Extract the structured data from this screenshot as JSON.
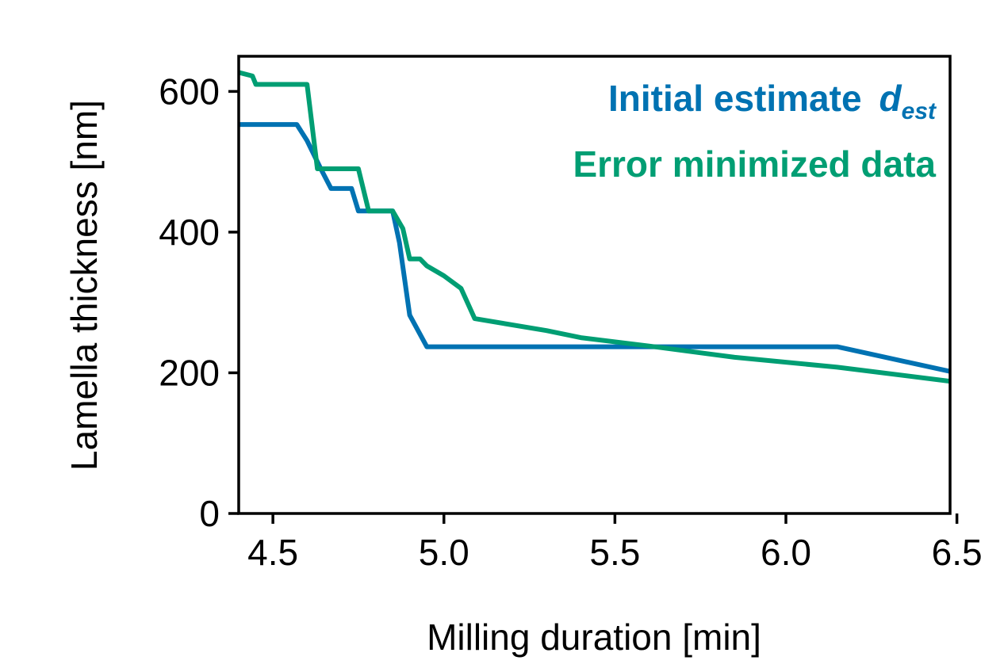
{
  "chart_data": {
    "type": "line",
    "xlabel": "Milling duration [min]",
    "ylabel": "Lamella thickness [nm]",
    "xlim": [
      4.4,
      6.48
    ],
    "ylim": [
      0,
      650
    ],
    "xticks": [
      {
        "value": 4.5,
        "label": "4.5"
      },
      {
        "value": 5.0,
        "label": "5.0"
      },
      {
        "value": 5.5,
        "label": "5.5"
      },
      {
        "value": 6.0,
        "label": "6.0"
      },
      {
        "value": 6.5,
        "label": "6.5"
      }
    ],
    "yticks": [
      {
        "value": 0,
        "label": "0"
      },
      {
        "value": 200,
        "label": "200"
      },
      {
        "value": 400,
        "label": "400"
      },
      {
        "value": 600,
        "label": "600"
      }
    ],
    "grid": false,
    "legend": "top-right",
    "series": [
      {
        "name": "Initial estimate",
        "name_italic": "d",
        "name_subscript": "est",
        "color": "#0072b2",
        "points": [
          [
            4.4,
            553
          ],
          [
            4.57,
            553
          ],
          [
            4.6,
            530
          ],
          [
            4.64,
            490
          ],
          [
            4.67,
            462
          ],
          [
            4.73,
            462
          ],
          [
            4.75,
            430
          ],
          [
            4.85,
            430
          ],
          [
            4.87,
            385
          ],
          [
            4.9,
            282
          ],
          [
            4.95,
            237
          ],
          [
            6.15,
            237
          ],
          [
            6.48,
            202
          ]
        ]
      },
      {
        "name": "Error minimized data",
        "color": "#009e73",
        "points": [
          [
            4.4,
            627
          ],
          [
            4.44,
            622
          ],
          [
            4.45,
            610
          ],
          [
            4.6,
            610
          ],
          [
            4.63,
            490
          ],
          [
            4.75,
            490
          ],
          [
            4.78,
            430
          ],
          [
            4.85,
            430
          ],
          [
            4.88,
            405
          ],
          [
            4.9,
            362
          ],
          [
            4.93,
            362
          ],
          [
            4.95,
            352
          ],
          [
            5.0,
            338
          ],
          [
            5.05,
            320
          ],
          [
            5.09,
            277
          ],
          [
            5.3,
            260
          ],
          [
            5.4,
            250
          ],
          [
            5.6,
            238
          ],
          [
            5.85,
            222
          ],
          [
            6.15,
            208
          ],
          [
            6.48,
            188
          ]
        ]
      }
    ]
  }
}
